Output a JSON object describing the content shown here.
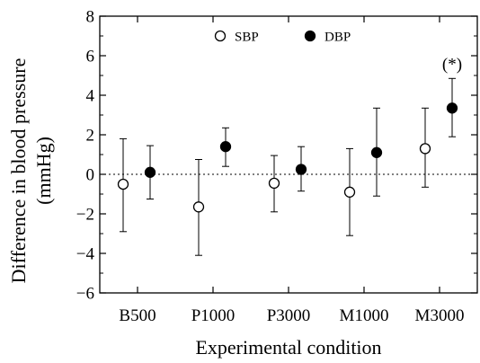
{
  "chart_data": {
    "type": "scatter",
    "xlabel": "Experimental condition",
    "ylabel": "Difference in blood pressure (mmHg)",
    "ylabel_lines": [
      "Difference in blood pressure",
      "(mmHg)"
    ],
    "categories": [
      "B500",
      "P1000",
      "P3000",
      "M1000",
      "M3000"
    ],
    "ylim": [
      -6,
      8
    ],
    "yticks": [
      -6,
      -4,
      -2,
      0,
      2,
      4,
      6,
      8
    ],
    "ytick_labels": [
      "−6",
      "−4",
      "−2",
      "0",
      "2",
      "4",
      "6",
      "8"
    ],
    "reference_line": {
      "y": 0,
      "style": "dotted"
    },
    "grid": false,
    "legend_position": "top-center",
    "series": [
      {
        "name": "SBP",
        "marker": "open-circle",
        "values": [
          -0.5,
          -1.65,
          -0.45,
          -0.9,
          1.3
        ],
        "error_low": [
          -2.9,
          -4.1,
          -1.9,
          -3.1,
          -0.65
        ],
        "error_high": [
          1.8,
          0.75,
          0.95,
          1.3,
          3.35
        ]
      },
      {
        "name": "DBP",
        "marker": "filled-circle",
        "values": [
          0.1,
          1.4,
          0.25,
          1.1,
          3.35
        ],
        "error_low": [
          -1.25,
          0.4,
          -0.85,
          -1.1,
          1.9
        ],
        "error_high": [
          1.45,
          2.35,
          1.4,
          3.35,
          4.85
        ]
      }
    ],
    "annotations": [
      {
        "text": "(*)",
        "category": "M3000",
        "series": "DBP"
      }
    ]
  }
}
